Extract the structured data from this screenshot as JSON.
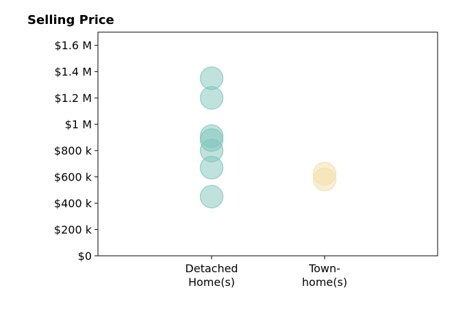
{
  "chart_data": {
    "type": "scatter",
    "title": "Selling Price",
    "xlabel": "",
    "ylabel": "",
    "categories": [
      [
        "Detached",
        "Home(s)"
      ],
      [
        "Town-",
        "home(s)"
      ]
    ],
    "ylim": [
      0,
      1700000
    ],
    "y_ticks": [
      0,
      200000,
      400000,
      600000,
      800000,
      1000000,
      1200000,
      1400000,
      1600000
    ],
    "y_tick_labels": [
      "$0",
      "$200 k",
      "$400 k",
      "$600 k",
      "$800 k",
      "$1 M",
      "$1.2 M",
      "$1.4 M",
      "$1.6 M"
    ],
    "grid": false,
    "legend": "none",
    "series": [
      {
        "category_index": 0,
        "color": "#7fc6bc",
        "values": [
          1350000,
          1200000,
          910000,
          880000,
          800000,
          670000,
          450000
        ]
      },
      {
        "category_index": 1,
        "color": "#f3dea8",
        "values": [
          625000,
          580000
        ]
      }
    ]
  }
}
